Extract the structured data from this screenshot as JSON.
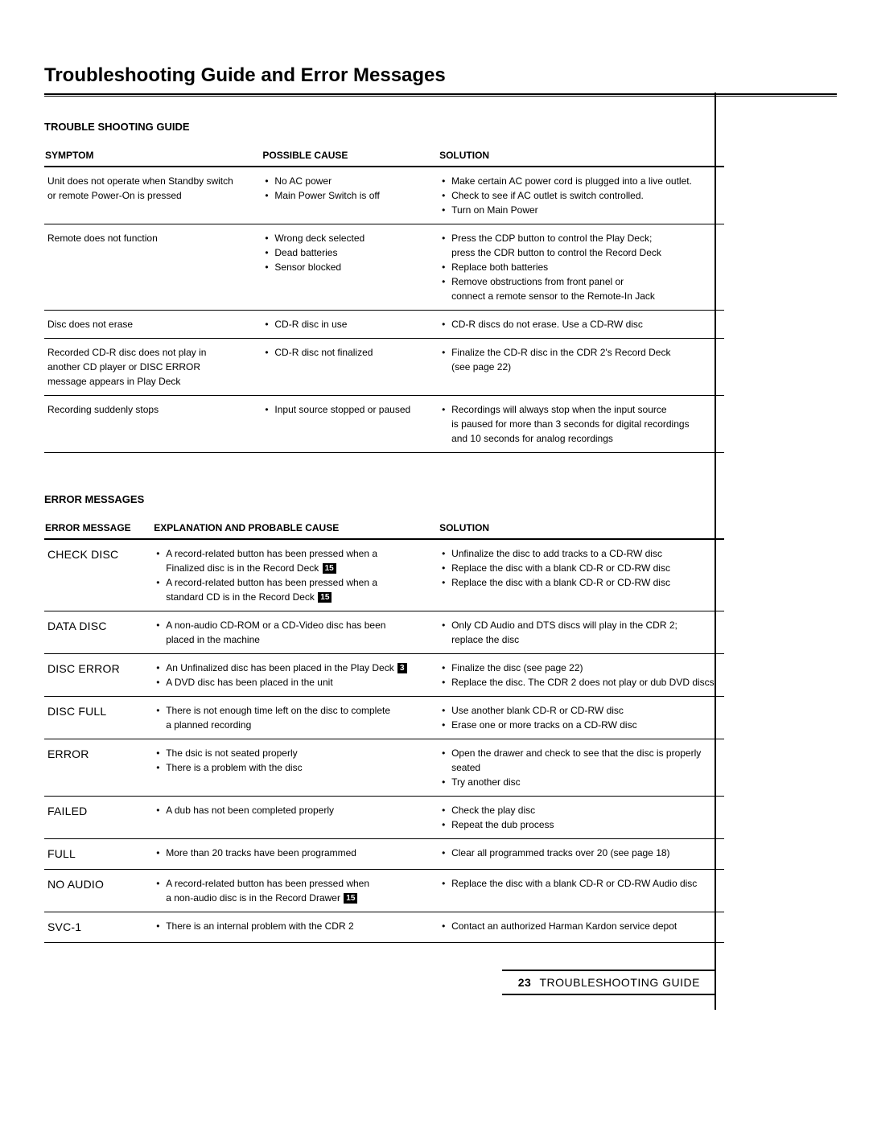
{
  "main_title": "Troubleshooting Guide and Error Messages",
  "troubleshooting": {
    "heading": "TROUBLE SHOOTING GUIDE",
    "columns": {
      "symptom": "SYMPTOM",
      "cause": "POSSIBLE CAUSE",
      "solution": "SOLUTION"
    },
    "rows": [
      {
        "symptom": [
          "Unit does not operate when Standby switch",
          "or remote Power-On is pressed"
        ],
        "causes": [
          "No AC power",
          "Main Power Switch is off"
        ],
        "solutions": [
          "Make certain AC power cord is plugged into a live outlet.",
          "Check to see if AC outlet is switch controlled.",
          "Turn on Main Power"
        ]
      },
      {
        "symptom": [
          "Remote does not function"
        ],
        "causes": [
          "Wrong deck selected",
          "Dead batteries",
          "Sensor blocked"
        ],
        "solutions": [
          "Press the CDP button to control the Play Deck;",
          "press the CDR button to control the Record Deck",
          "Replace both batteries",
          "Remove obstructions from front panel or",
          "connect a remote sensor to the Remote-In Jack"
        ],
        "solution_cont": [
          1,
          4
        ]
      },
      {
        "symptom": [
          "Disc does not erase"
        ],
        "causes": [
          "CD-R disc in use"
        ],
        "solutions": [
          "CD-R discs do not erase. Use a CD-RW disc"
        ]
      },
      {
        "symptom": [
          "Recorded CD-R disc does not play in",
          "another CD player or DISC ERROR",
          "message appears in Play Deck"
        ],
        "causes": [
          "CD-R disc not finalized"
        ],
        "solutions": [
          "Finalize the CD-R disc in the CDR 2's Record Deck",
          "(see page 22)"
        ],
        "solution_cont": [
          1
        ]
      },
      {
        "symptom": [
          "Recording suddenly stops"
        ],
        "causes": [
          "Input source stopped or paused"
        ],
        "solutions": [
          "Recordings will always stop when the input source",
          "is paused for more than 3 seconds for digital recordings",
          "and 10 seconds for analog recordings"
        ],
        "solution_cont": [
          1,
          2
        ]
      }
    ]
  },
  "error_messages": {
    "heading": "ERROR MESSAGES",
    "columns": {
      "error": "ERROR MESSAGE",
      "exp": "EXPLANATION AND PROBABLE CAUSE",
      "solution": "SOLUTION"
    },
    "rows": [
      {
        "error": "CHECK DISC",
        "explanations": [
          {
            "text": "A record-related button has been pressed when a"
          },
          {
            "text": "Finalized disc is in the Record Deck",
            "cont": true,
            "icon": "15"
          },
          {
            "text": "A record-related button has been pressed when a"
          },
          {
            "text": "standard CD is in the Record Deck",
            "cont": true,
            "icon": "15"
          }
        ],
        "solutions": [
          "Unfinalize the disc to add tracks to a CD-RW disc",
          "Replace the disc with a blank CD-R or CD-RW disc",
          "Replace the disc with a blank CD-R or CD-RW disc"
        ]
      },
      {
        "error": "DATA DISC",
        "explanations": [
          {
            "text": "A non-audio CD-ROM or a CD-Video disc has been"
          },
          {
            "text": "placed in the machine",
            "cont": true
          }
        ],
        "solutions": [
          "Only CD Audio and DTS discs will play in the CDR 2;",
          "replace the disc"
        ],
        "solution_cont": [
          1
        ]
      },
      {
        "error": "DISC ERROR",
        "explanations": [
          {
            "text": "An Unfinalized disc has been placed in the Play Deck",
            "icon": "3"
          },
          {
            "text": "A DVD disc has been placed in the unit"
          }
        ],
        "solutions": [
          "Finalize the disc (see page 22)",
          "Replace the disc. The CDR 2 does not play or dub DVD discs"
        ]
      },
      {
        "error": "DISC FULL",
        "explanations": [
          {
            "text": "There is not enough time left on the disc to complete"
          },
          {
            "text": "a planned recording",
            "cont": true
          }
        ],
        "solutions": [
          "Use another blank CD-R or CD-RW disc",
          "Erase one or more tracks on a CD-RW disc"
        ]
      },
      {
        "error": "ERROR",
        "explanations": [
          {
            "text": "The dsic is not seated properly"
          },
          {
            "text": "There is a problem with the disc"
          }
        ],
        "solutions": [
          "Open the drawer and check to see that the disc is properly seated",
          "Try another disc"
        ]
      },
      {
        "error": "FAILED",
        "explanations": [
          {
            "text": "A dub has not been completed properly"
          }
        ],
        "solutions": [
          "Check the play disc",
          "Repeat the dub process"
        ]
      },
      {
        "error": "FULL",
        "explanations": [
          {
            "text": "More than 20 tracks have been programmed"
          }
        ],
        "solutions": [
          "Clear all programmed tracks over 20 (see page 18)"
        ]
      },
      {
        "error": "NO AUDIO",
        "explanations": [
          {
            "text": "A record-related button has been pressed when"
          },
          {
            "text": "a non-audio disc is in the Record Drawer",
            "cont": true,
            "icon": "15"
          }
        ],
        "solutions": [
          "Replace the disc with a blank CD-R or CD-RW Audio disc"
        ]
      },
      {
        "error": "SVC-1",
        "explanations": [
          {
            "text": "There is an internal problem with the CDR 2"
          }
        ],
        "solutions": [
          "Contact an authorized Harman Kardon service depot"
        ]
      }
    ]
  },
  "footer": {
    "page": "23",
    "label": "TROUBLESHOOTING GUIDE"
  },
  "colors": {
    "text": "#000000",
    "bg": "#ffffff"
  }
}
